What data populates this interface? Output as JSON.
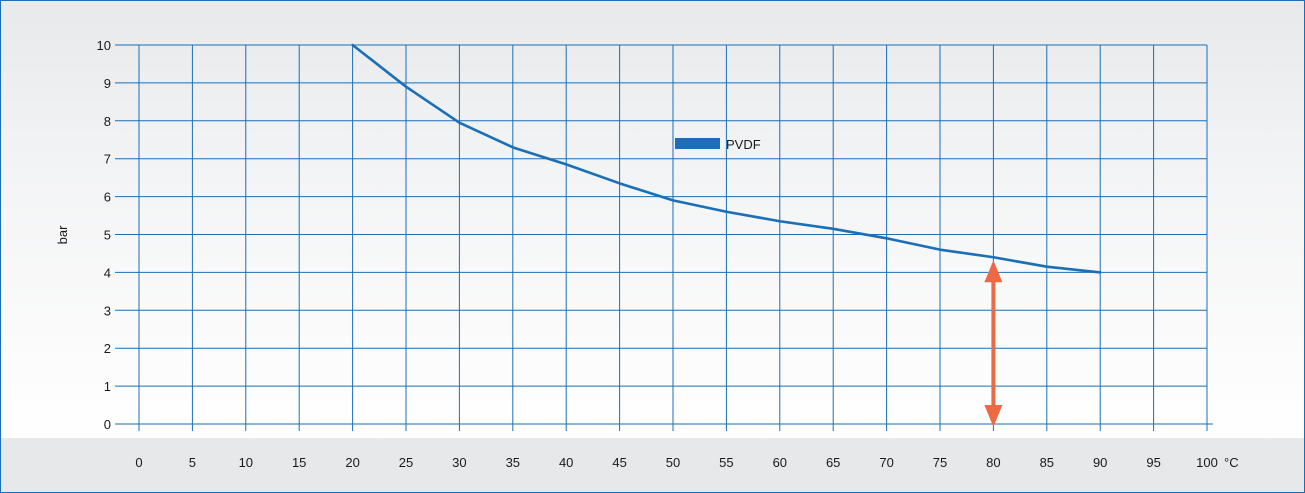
{
  "chart_data": {
    "type": "line",
    "ylabel": "bar",
    "xlabel": "°C",
    "xlim": [
      0,
      100
    ],
    "ylim": [
      0,
      10
    ],
    "x_ticks": [
      0,
      5,
      10,
      15,
      20,
      25,
      30,
      35,
      40,
      45,
      50,
      55,
      60,
      65,
      70,
      75,
      80,
      85,
      90,
      95,
      100
    ],
    "y_ticks": [
      0,
      1,
      2,
      3,
      4,
      5,
      6,
      7,
      8,
      9,
      10
    ],
    "grid": true,
    "legend_position": "center-top",
    "series": [
      {
        "name": "PVDF",
        "color": "#1a6fb6",
        "x": [
          20,
          25,
          30,
          35,
          40,
          45,
          50,
          55,
          60,
          65,
          70,
          75,
          80,
          85,
          90
        ],
        "y": [
          10,
          8.9,
          7.95,
          7.3,
          6.85,
          6.35,
          5.9,
          5.6,
          5.35,
          5.15,
          4.9,
          4.6,
          4.4,
          4.15,
          4.0
        ]
      }
    ],
    "annotations": [
      {
        "type": "double-arrow",
        "x": 80,
        "y_from": 0,
        "y_to": 4.4,
        "color": "#ec6a43"
      }
    ],
    "colors": {
      "grid": "#1a6fb6",
      "frame": "#1a6fb6",
      "arrow": "#ec6a43",
      "text": "#1a1a1a"
    }
  }
}
